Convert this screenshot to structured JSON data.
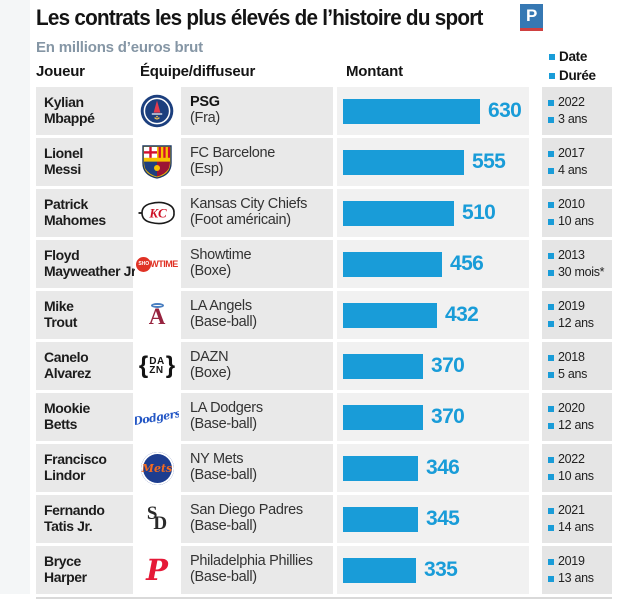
{
  "header": {
    "title": "Les contrats les plus élevés de l’histoire du sport",
    "logo_letter": "P",
    "subtitle": "En millions d’euros brut",
    "legend": {
      "date": "Date",
      "duration": "Durée"
    }
  },
  "columns": {
    "player": "Joueur",
    "team": "Équipe/diffuseur",
    "amount": "Montant"
  },
  "colors": {
    "accent_blue": "#199cd8",
    "row_bg": "#e9e9e9",
    "bar_cell_bg": "#f1f1f1",
    "date_cell_bg": "#e5e5e5",
    "subtitle_gray_blue": "#8596a5",
    "parisien_logo_blue": "#3678b3",
    "parisien_logo_red": "#cf4040"
  },
  "rows": [
    {
      "player_line1": "Kylian",
      "player_line2": "Mbappé",
      "team": "PSG",
      "league": "(Fra)",
      "amount": "630",
      "date": "2022",
      "duration": "3 ans"
    },
    {
      "player_line1": "Lionel",
      "player_line2": "Messi",
      "team": "FC Barcelone",
      "league": "(Esp)",
      "amount": "555",
      "date": "2017",
      "duration": "4 ans"
    },
    {
      "player_line1": "Patrick",
      "player_line2": "Mahomes",
      "team": "Kansas City Chiefs",
      "league": "(Foot américain)",
      "amount": "510",
      "date": "2010",
      "duration": "10 ans"
    },
    {
      "player_line1": "Floyd",
      "player_line2": "Mayweather Jr.",
      "team": "Showtime",
      "league": "(Boxe)",
      "amount": "456",
      "date": "2013",
      "duration": "30 mois*"
    },
    {
      "player_line1": "Mike",
      "player_line2": "Trout",
      "team": "LA Angels",
      "league": "(Base-ball)",
      "amount": "432",
      "date": "2019",
      "duration": "12 ans"
    },
    {
      "player_line1": "Canelo",
      "player_line2": "Alvarez",
      "team": "DAZN",
      "league": "(Boxe)",
      "amount": "370",
      "date": "2018",
      "duration": "5 ans"
    },
    {
      "player_line1": "Mookie",
      "player_line2": "Betts",
      "team": "LA Dodgers",
      "league": "(Base-ball)",
      "amount": "370",
      "date": "2020",
      "duration": "12 ans"
    },
    {
      "player_line1": "Francisco",
      "player_line2": "Lindor",
      "team": "NY Mets",
      "league": "(Base-ball)",
      "amount": "346",
      "date": "2022",
      "duration": "10 ans"
    },
    {
      "player_line1": "Fernando",
      "player_line2": "Tatis Jr.",
      "team": "San Diego Padres",
      "league": "(Base-ball)",
      "amount": "345",
      "date": "2021",
      "duration": "14 ans"
    },
    {
      "player_line1": "Bryce",
      "player_line2": "Harper",
      "team": "Philadelphia Phillies",
      "league": "(Base-ball)",
      "amount": "335",
      "date": "2019",
      "duration": "13 ans"
    }
  ],
  "chart_data": {
    "type": "bar",
    "orientation": "horizontal",
    "title": "Les contrats les plus élevés de l’histoire du sport",
    "units_label": "En millions d’euros brut",
    "categories": [
      "Kylian Mbappé",
      "Lionel Messi",
      "Patrick Mahomes",
      "Floyd Mayweather Jr.",
      "Mike Trout",
      "Canelo Alvarez",
      "Mookie Betts",
      "Francisco Lindor",
      "Fernando Tatis Jr.",
      "Bryce Harper"
    ],
    "values": [
      630,
      555,
      510,
      456,
      432,
      370,
      370,
      346,
      345,
      335
    ],
    "teams": [
      "PSG (Fra)",
      "FC Barcelone (Esp)",
      "Kansas City Chiefs (Foot américain)",
      "Showtime (Boxe)",
      "LA Angels (Base-ball)",
      "DAZN (Boxe)",
      "LA Dodgers (Base-ball)",
      "NY Mets (Base-ball)",
      "San Diego Padres (Base-ball)",
      "Philadelphia Phillies (Base-ball)"
    ],
    "dates": [
      "2022",
      "2017",
      "2010",
      "2013",
      "2019",
      "2018",
      "2020",
      "2022",
      "2021",
      "2019"
    ],
    "durations": [
      "3 ans",
      "4 ans",
      "10 ans",
      "30 mois*",
      "12 ans",
      "5 ans",
      "12 ans",
      "10 ans",
      "14 ans",
      "13 ans"
    ],
    "xlim": [
      0,
      630
    ],
    "value_labels_shown": true,
    "grid": false,
    "legend_position": "top-right",
    "bar_color": "#199cd8"
  }
}
